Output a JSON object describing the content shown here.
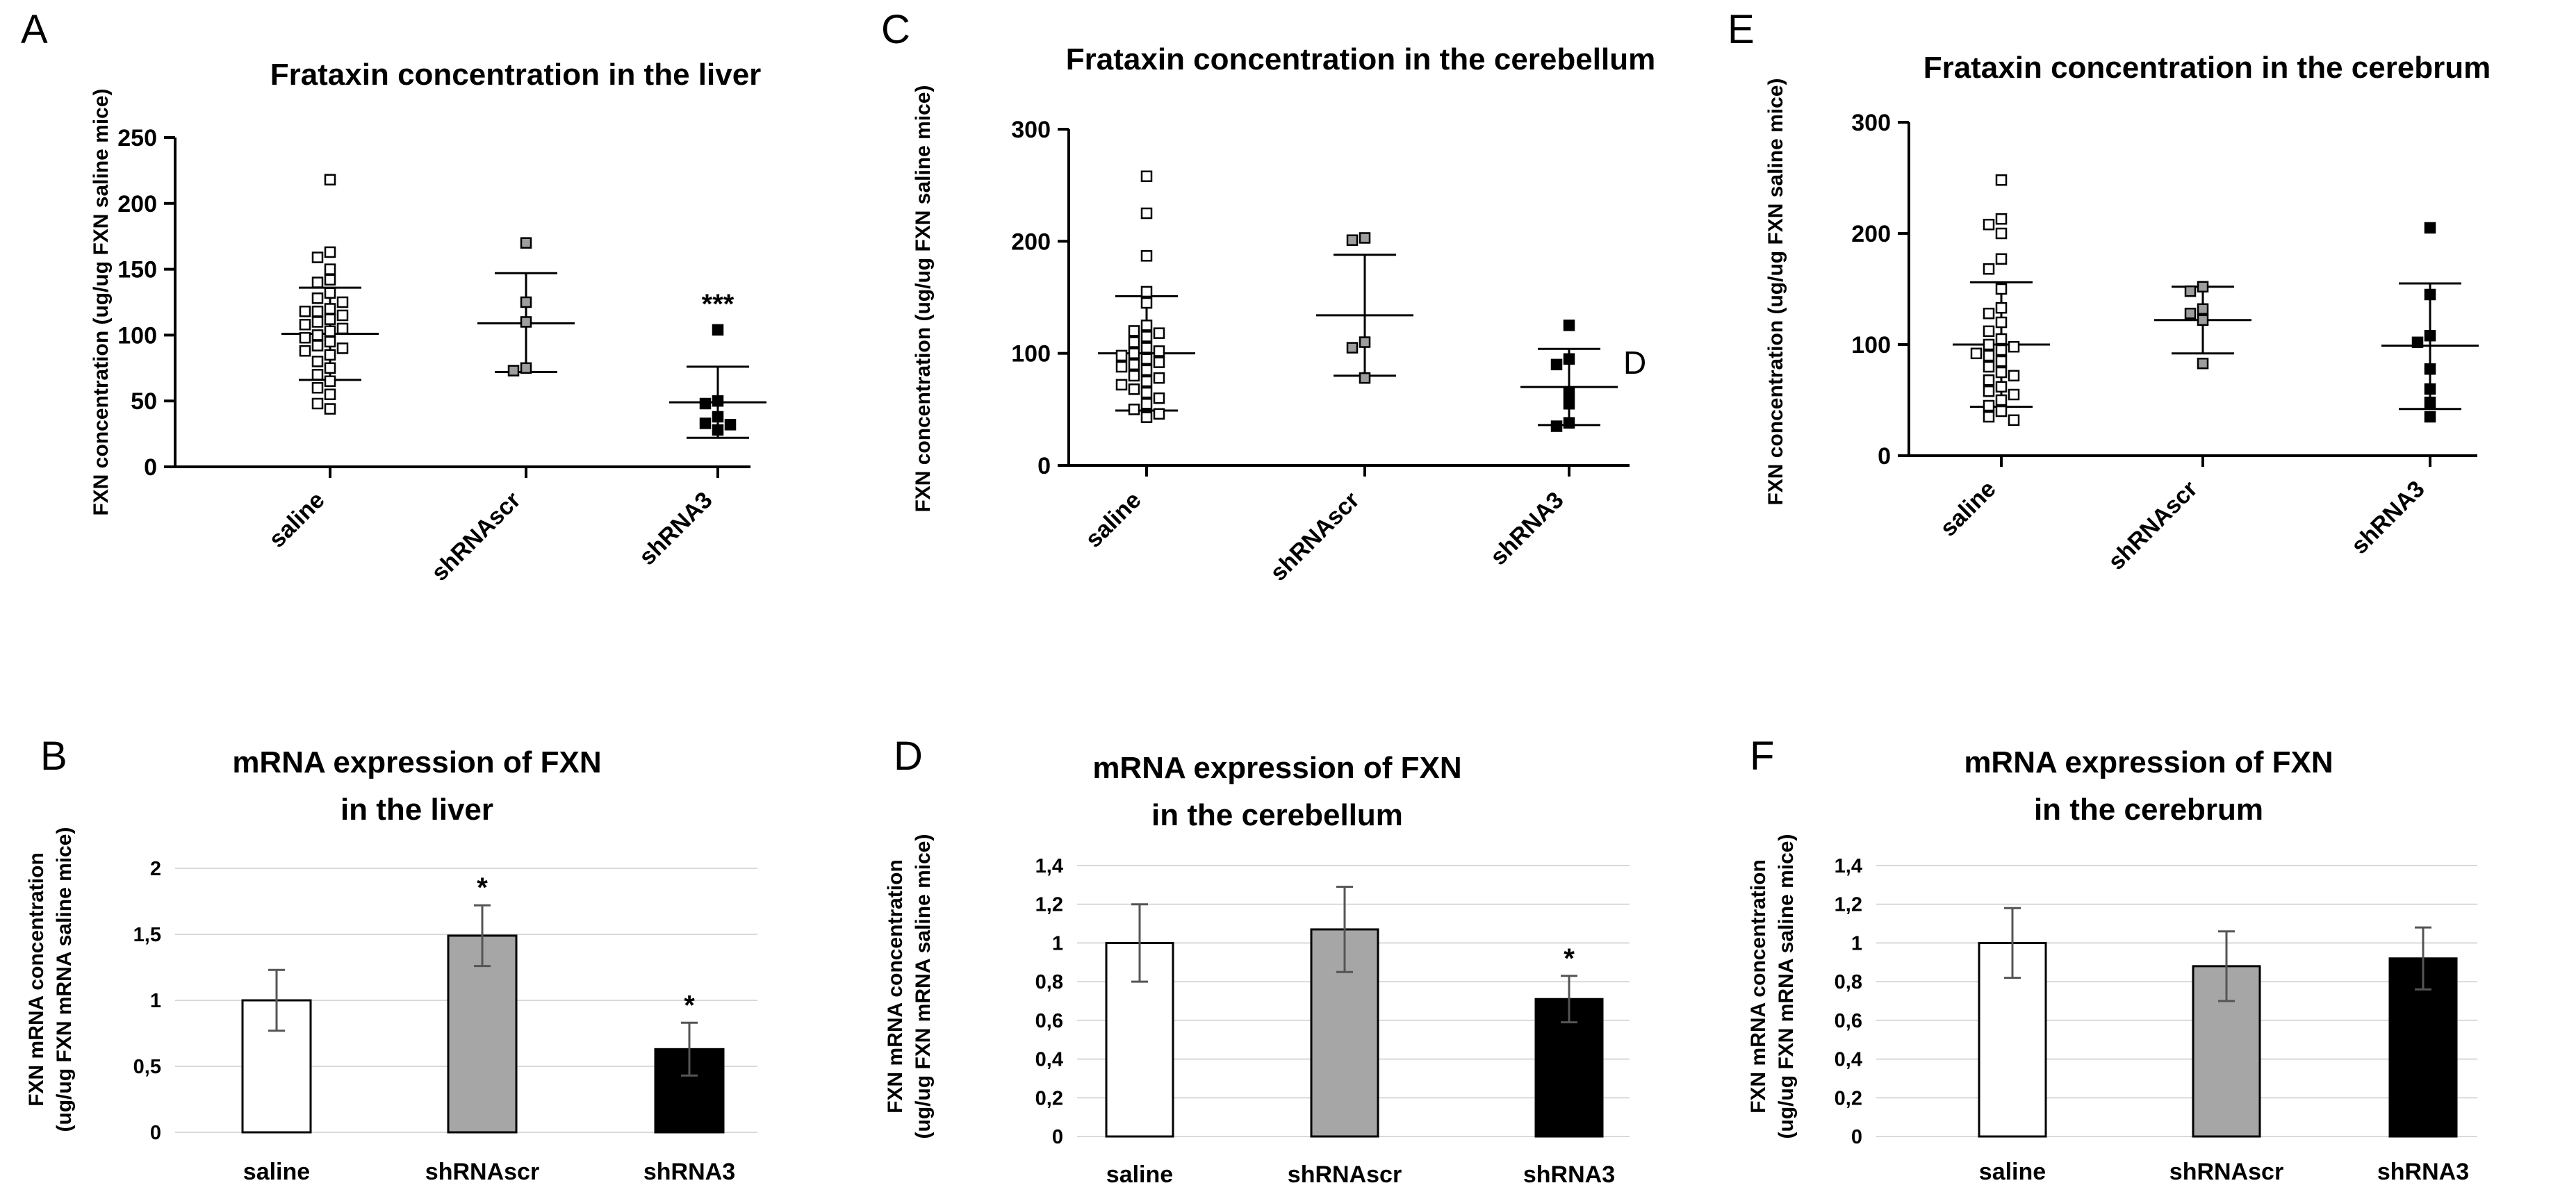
{
  "panel_letters": [
    "A",
    "B",
    "C",
    "D",
    "E",
    "F"
  ],
  "chart_data": [
    {
      "panel": "A",
      "type": "scatter",
      "title": "Frataxin concentration in the liver",
      "xlabel": "",
      "ylabel": "FXN concentration (ug/ug FXN saline mice)",
      "ylim": [
        0,
        250
      ],
      "yticks": [
        0,
        50,
        100,
        150,
        200,
        250
      ],
      "ytick_labels": [
        "0",
        "50",
        "100",
        "150",
        "200",
        "250"
      ],
      "categories": [
        "saline",
        "shRNAscr",
        "shRNA3"
      ],
      "marker_fill": [
        "#ffffff",
        "#9e9e9e",
        "#000000"
      ],
      "groups": [
        {
          "name": "saline",
          "mean": 101,
          "upper": 136,
          "lower": 66,
          "points": [
            218,
            163,
            159,
            150,
            142,
            140,
            132,
            128,
            125,
            120,
            118,
            118,
            115,
            112,
            110,
            108,
            105,
            103,
            100,
            98,
            95,
            92,
            90,
            88,
            85,
            80,
            75,
            70,
            65,
            60,
            55,
            48,
            44
          ]
        },
        {
          "name": "shRNAscr",
          "mean": 109,
          "upper": 147,
          "lower": 72,
          "points": [
            170,
            125,
            110,
            75,
            73
          ]
        },
        {
          "name": "shRNA3",
          "mean": 49,
          "upper": 76,
          "lower": 22,
          "points": [
            104,
            50,
            48,
            38,
            33,
            32,
            28
          ]
        }
      ],
      "annotations": [
        {
          "category": "shRNA3",
          "text": "***"
        }
      ]
    },
    {
      "panel": "B",
      "type": "bar",
      "title": [
        "mRNA expression of FXN",
        "in the liver"
      ],
      "xlabel": "",
      "ylabel": [
        "FXN mRNA concentration",
        "(ug/ug FXN mRNA saline mice)"
      ],
      "ylim": [
        0,
        2
      ],
      "yticks": [
        0,
        0.5,
        1,
        1.5,
        2
      ],
      "ytick_labels": [
        "0",
        "0,5",
        "1",
        "1,5",
        "2"
      ],
      "categories": [
        "saline",
        "shRNAscr",
        "shRNA3"
      ],
      "values": [
        1.0,
        1.49,
        0.63
      ],
      "errors": [
        0.23,
        0.23,
        0.2
      ],
      "bar_colors": [
        "#ffffff",
        "#a6a6a6",
        "#000000"
      ],
      "annotations": [
        {
          "category": "shRNAscr",
          "text": "*"
        },
        {
          "category": "shRNA3",
          "text": "*"
        }
      ]
    },
    {
      "panel": "C",
      "type": "scatter",
      "title": "Frataxin concentration in the cerebellum",
      "xlabel": "",
      "ylabel": "FXN concentration (ug/ug FXN saline mice)",
      "ylim": [
        0,
        300
      ],
      "yticks": [
        0,
        100,
        200,
        300
      ],
      "ytick_labels": [
        "0",
        "100",
        "200",
        "300"
      ],
      "categories": [
        "saline",
        "shRNAscr",
        "shRNA3"
      ],
      "marker_fill": [
        "#ffffff",
        "#9e9e9e",
        "#000000"
      ],
      "groups": [
        {
          "name": "saline",
          "mean": 100,
          "upper": 151,
          "lower": 49,
          "points": [
            258,
            225,
            187,
            155,
            145,
            125,
            120,
            118,
            115,
            110,
            105,
            102,
            100,
            98,
            95,
            92,
            90,
            88,
            85,
            80,
            78,
            75,
            72,
            68,
            65,
            60,
            55,
            50,
            46,
            43
          ]
        },
        {
          "name": "shRNAscr",
          "mean": 134,
          "upper": 188,
          "lower": 80,
          "points": [
            203,
            201,
            110,
            105,
            78
          ]
        },
        {
          "name": "shRNA3",
          "mean": 70,
          "upper": 104,
          "lower": 36,
          "points": [
            125,
            95,
            90,
            65,
            55,
            38,
            35
          ]
        }
      ],
      "annotations": [
        {
          "category": "shRNA3",
          "text": "D"
        }
      ]
    },
    {
      "panel": "D",
      "type": "bar",
      "title": [
        "mRNA expression of FXN",
        "in the cerebellum"
      ],
      "xlabel": "",
      "ylabel": [
        "FXN mRNA concentration",
        "(ug/ug FXN mRNA saline mice)"
      ],
      "ylim": [
        0,
        1.4
      ],
      "yticks": [
        0,
        0.2,
        0.4,
        0.6,
        0.8,
        1.0,
        1.2,
        1.4
      ],
      "ytick_labels": [
        "0",
        "0,2",
        "0,4",
        "0,6",
        "0,8",
        "1",
        "1,2",
        "1,4"
      ],
      "categories": [
        "saline",
        "shRNAscr",
        "shRNA3"
      ],
      "values": [
        1.0,
        1.07,
        0.71
      ],
      "errors": [
        0.2,
        0.22,
        0.12
      ],
      "bar_colors": [
        "#ffffff",
        "#a6a6a6",
        "#000000"
      ],
      "annotations": [
        {
          "category": "shRNA3",
          "text": "*"
        }
      ]
    },
    {
      "panel": "E",
      "type": "scatter",
      "title": "Frataxin concentration in the cerebrum",
      "xlabel": "",
      "ylabel": "FXN concentration (ug/ug FXN saline mice)",
      "ylim": [
        0,
        300
      ],
      "yticks": [
        0,
        100,
        200,
        300
      ],
      "ytick_labels": [
        "0",
        "100",
        "200",
        "300"
      ],
      "categories": [
        "saline",
        "shRNAscr",
        "shRNA3"
      ],
      "marker_fill": [
        "#ffffff",
        "#9e9e9e",
        "#000000"
      ],
      "groups": [
        {
          "name": "saline",
          "mean": 100,
          "upper": 156,
          "lower": 44,
          "points": [
            248,
            213,
            208,
            200,
            177,
            168,
            150,
            133,
            128,
            120,
            112,
            105,
            100,
            98,
            95,
            92,
            90,
            85,
            80,
            75,
            72,
            68,
            62,
            58,
            55,
            50,
            45,
            40,
            35,
            32
          ]
        },
        {
          "name": "shRNAscr",
          "mean": 122,
          "upper": 152,
          "lower": 92,
          "points": [
            152,
            148,
            132,
            128,
            122,
            83
          ]
        },
        {
          "name": "shRNA3",
          "mean": 99,
          "upper": 155,
          "lower": 42,
          "points": [
            205,
            145,
            108,
            102,
            78,
            60,
            48,
            35
          ]
        }
      ],
      "annotations": []
    },
    {
      "panel": "F",
      "type": "bar",
      "title": [
        "mRNA expression of FXN",
        "in the cerebrum"
      ],
      "xlabel": "",
      "ylabel": [
        "FXN mRNA concentration",
        "(ug/ug FXN mRNA saline mice)"
      ],
      "ylim": [
        0,
        1.4
      ],
      "yticks": [
        0,
        0.2,
        0.4,
        0.6,
        0.8,
        1.0,
        1.2,
        1.4
      ],
      "ytick_labels": [
        "0",
        "0,2",
        "0,4",
        "0,6",
        "0,8",
        "1",
        "1,2",
        "1,4"
      ],
      "categories": [
        "saline",
        "shRNAscr",
        "shRNA3"
      ],
      "values": [
        1.0,
        0.88,
        0.92
      ],
      "errors": [
        0.18,
        0.18,
        0.16
      ],
      "bar_colors": [
        "#ffffff",
        "#a6a6a6",
        "#000000"
      ],
      "annotations": []
    }
  ]
}
